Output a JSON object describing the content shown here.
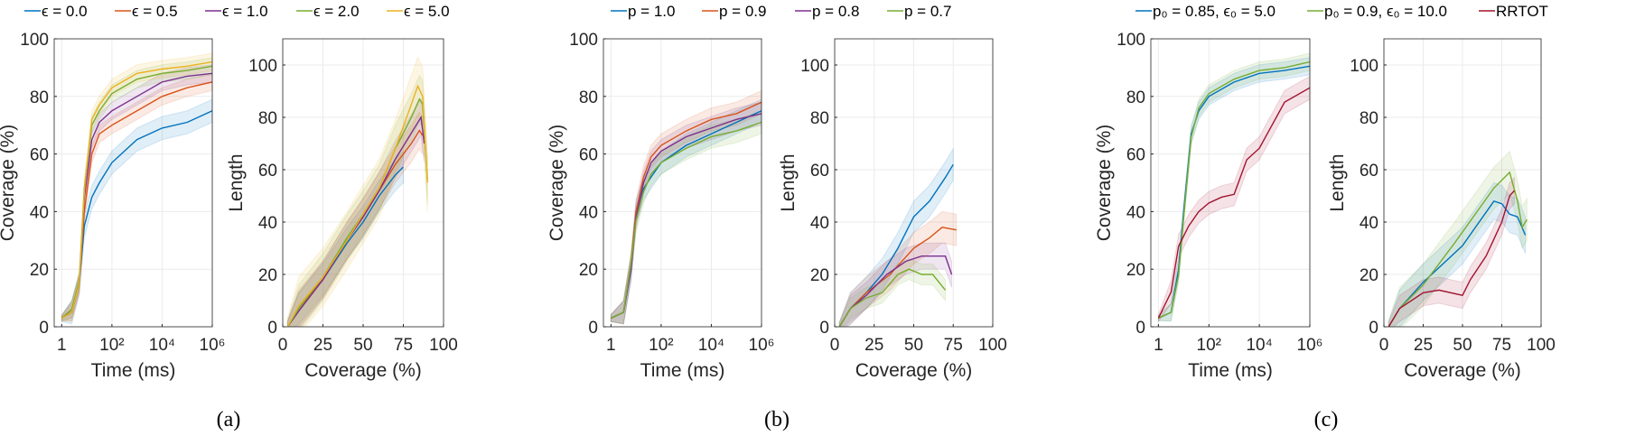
{
  "colors": {
    "blue": "#0072BD",
    "orange": "#D95319",
    "purple": "#7E2F8E",
    "green": "#77AC30",
    "yellow": "#EDB120",
    "red": "#A2142F"
  },
  "legends": [
    {
      "panel": "a",
      "items": [
        {
          "label": "ϵ = 0.0",
          "color": "#0072BD"
        },
        {
          "label": "ϵ = 0.5",
          "color": "#D95319"
        },
        {
          "label": "ϵ = 1.0",
          "color": "#7E2F8E"
        },
        {
          "label": "ϵ = 2.0",
          "color": "#77AC30"
        },
        {
          "label": "ϵ = 5.0",
          "color": "#EDB120"
        }
      ]
    },
    {
      "panel": "b",
      "items": [
        {
          "label": "p = 1.0",
          "color": "#0072BD"
        },
        {
          "label": "p = 0.9",
          "color": "#D95319"
        },
        {
          "label": "p = 0.8",
          "color": "#7E2F8E"
        },
        {
          "label": "p = 0.7",
          "color": "#77AC30"
        }
      ]
    },
    {
      "panel": "c",
      "items": [
        {
          "label": "p₀ = 0.85, ϵ₀ = 5.0",
          "color": "#0072BD"
        },
        {
          "label": "p₀ = 0.9, ϵ₀ = 10.0",
          "color": "#77AC30"
        },
        {
          "label": "RRTOT",
          "color": "#A2142F"
        }
      ]
    }
  ],
  "captions": [
    "(a)",
    "(b)",
    "(c)"
  ],
  "chart_data": [
    {
      "type": "line",
      "panel": "a",
      "xscale": "log",
      "xlabel": "Time (ms)",
      "ylabel": "Coverage (%)",
      "xlim_log10": [
        -0.3,
        6
      ],
      "ylim": [
        0,
        100
      ],
      "xticks_log10": [
        0,
        2,
        4,
        6
      ],
      "xtick_labels": [
        "1",
        "10²",
        "10⁴",
        "10⁶"
      ],
      "yticks": [
        0,
        20,
        40,
        60,
        80,
        100
      ],
      "ytick_labels": [
        "0",
        "20",
        "40",
        "60",
        "80",
        "100"
      ],
      "grid": true,
      "series": [
        {
          "name": "ϵ = 0.0",
          "color": "#0072BD",
          "spread": 4,
          "x_log10": [
            0,
            0.4,
            0.7,
            0.9,
            1.2,
            1.5,
            2,
            2.5,
            3,
            4,
            5,
            6
          ],
          "y": [
            3,
            5,
            15,
            35,
            45,
            50,
            57,
            61,
            65,
            69,
            71,
            75
          ]
        },
        {
          "name": "ϵ = 0.5",
          "color": "#D95319",
          "spread": 3,
          "x_log10": [
            0,
            0.4,
            0.7,
            0.9,
            1.2,
            1.5,
            2,
            3,
            4,
            5,
            6
          ],
          "y": [
            3,
            5,
            15,
            40,
            60,
            67,
            70,
            75,
            80,
            83,
            85
          ]
        },
        {
          "name": "ϵ = 1.0",
          "color": "#7E2F8E",
          "spread": 3,
          "x_log10": [
            0,
            0.4,
            0.7,
            0.9,
            1.2,
            1.5,
            2,
            3,
            4,
            5,
            6
          ],
          "y": [
            3,
            6,
            15,
            45,
            65,
            71,
            75,
            80,
            85,
            87,
            88
          ]
        },
        {
          "name": "ϵ = 2.0",
          "color": "#77AC30",
          "spread": 3,
          "x_log10": [
            0,
            0.4,
            0.7,
            0.9,
            1.2,
            1.5,
            2,
            3,
            4,
            5,
            6
          ],
          "y": [
            3,
            6,
            16,
            48,
            70,
            75,
            81,
            86,
            88,
            89,
            90.5
          ]
        },
        {
          "name": "ϵ = 5.0",
          "color": "#EDB120",
          "spread": 3,
          "x_log10": [
            0,
            0.4,
            0.7,
            0.9,
            1.2,
            1.5,
            2,
            3,
            4,
            5,
            6
          ],
          "y": [
            3,
            5,
            15,
            47,
            72,
            77,
            83,
            88,
            89.5,
            90.5,
            92
          ]
        }
      ]
    },
    {
      "type": "line",
      "panel": "a",
      "xscale": "linear",
      "xlabel": "Coverage (%)",
      "ylabel": "Length",
      "xlim": [
        0,
        100
      ],
      "ylim": [
        0,
        110
      ],
      "xticks": [
        0,
        25,
        50,
        75,
        100
      ],
      "xtick_labels": [
        "0",
        "25",
        "50",
        "75",
        "100"
      ],
      "yticks": [
        0,
        20,
        40,
        60,
        80,
        100
      ],
      "ytick_labels": [
        "0",
        "20",
        "40",
        "60",
        "80",
        "100"
      ],
      "grid": true,
      "series": [
        {
          "name": "ϵ = 0.0",
          "color": "#0072BD",
          "spread": 6,
          "x": [
            3,
            10,
            25,
            40,
            50,
            60,
            70,
            75
          ],
          "y": [
            0,
            7,
            18,
            32,
            40,
            50,
            58,
            61
          ]
        },
        {
          "name": "ϵ = 0.5",
          "color": "#D95319",
          "spread": 7,
          "x": [
            3,
            10,
            25,
            40,
            50,
            60,
            70,
            80,
            85,
            87
          ],
          "y": [
            0,
            7,
            18,
            33,
            42,
            52,
            62,
            70,
            75,
            73
          ]
        },
        {
          "name": "ϵ = 1.0",
          "color": "#7E2F8E",
          "spread": 7,
          "x": [
            3,
            10,
            25,
            40,
            50,
            60,
            70,
            80,
            86,
            88
          ],
          "y": [
            0,
            6,
            18,
            33,
            42,
            52,
            64,
            74,
            80,
            70
          ]
        },
        {
          "name": "ϵ = 2.0",
          "color": "#77AC30",
          "spread": 9,
          "x": [
            3,
            10,
            25,
            40,
            50,
            60,
            70,
            80,
            85,
            87,
            90
          ],
          "y": [
            0,
            7,
            19,
            34,
            43,
            53,
            68,
            80,
            87,
            85,
            56
          ]
        },
        {
          "name": "ϵ = 5.0",
          "color": "#EDB120",
          "spread": 11,
          "x": [
            3,
            10,
            25,
            40,
            50,
            60,
            70,
            80,
            84,
            87,
            90
          ],
          "y": [
            0,
            8,
            19,
            33,
            43,
            53,
            68,
            85,
            92,
            88,
            55
          ]
        }
      ]
    },
    {
      "type": "line",
      "panel": "b",
      "xscale": "log",
      "xlabel": "Time (ms)",
      "ylabel": "Coverage (%)",
      "xlim_log10": [
        -0.3,
        6
      ],
      "ylim": [
        0,
        100
      ],
      "xticks_log10": [
        0,
        2,
        4,
        6
      ],
      "xtick_labels": [
        "1",
        "10²",
        "10⁴",
        "10⁶"
      ],
      "yticks": [
        0,
        20,
        40,
        60,
        80,
        100
      ],
      "ytick_labels": [
        "0",
        "20",
        "40",
        "60",
        "80",
        "100"
      ],
      "grid": true,
      "series": [
        {
          "name": "p = 1.0",
          "color": "#0072BD",
          "spread": 4,
          "x_log10": [
            0,
            0.5,
            0.8,
            1,
            1.3,
            1.6,
            2,
            3,
            4,
            5,
            6
          ],
          "y": [
            3,
            5,
            20,
            40,
            48,
            52,
            57,
            63,
            67,
            71,
            75
          ]
        },
        {
          "name": "p = 0.9",
          "color": "#D95319",
          "spread": 4,
          "x_log10": [
            0,
            0.5,
            0.8,
            1,
            1.3,
            1.6,
            2,
            3,
            4,
            5,
            6
          ],
          "y": [
            3,
            5,
            22,
            40,
            52,
            59,
            63,
            68,
            72,
            74,
            78
          ]
        },
        {
          "name": "p = 0.8",
          "color": "#7E2F8E",
          "spread": 4,
          "x_log10": [
            0,
            0.5,
            0.8,
            1,
            1.3,
            1.6,
            2,
            3,
            4,
            5,
            6
          ],
          "y": [
            3,
            5,
            20,
            38,
            50,
            57,
            61,
            66,
            69,
            72,
            74
          ]
        },
        {
          "name": "p = 0.7",
          "color": "#77AC30",
          "spread": 4,
          "x_log10": [
            0,
            0.5,
            0.8,
            1,
            1.3,
            1.6,
            2,
            3,
            4,
            5,
            6
          ],
          "y": [
            3,
            5,
            22,
            37,
            47,
            53,
            57,
            62,
            66,
            68,
            71
          ]
        }
      ]
    },
    {
      "type": "line",
      "panel": "b",
      "xscale": "linear",
      "xlabel": "Coverage (%)",
      "ylabel": "Length",
      "xlim": [
        0,
        100
      ],
      "ylim": [
        0,
        110
      ],
      "xticks": [
        0,
        25,
        50,
        75,
        100
      ],
      "xtick_labels": [
        "0",
        "25",
        "50",
        "75",
        "100"
      ],
      "yticks": [
        0,
        20,
        40,
        60,
        80,
        100
      ],
      "ytick_labels": [
        "0",
        "20",
        "40",
        "60",
        "80",
        "100"
      ],
      "grid": true,
      "series": [
        {
          "name": "p = 1.0",
          "color": "#0072BD",
          "spread": 6,
          "x": [
            3,
            10,
            20,
            30,
            40,
            50,
            60,
            70,
            75
          ],
          "y": [
            0,
            7,
            13,
            20,
            30,
            42,
            48,
            57,
            62
          ]
        },
        {
          "name": "p = 0.9",
          "color": "#D95319",
          "spread": 6,
          "x": [
            3,
            10,
            20,
            35,
            50,
            60,
            68,
            77
          ],
          "y": [
            0,
            7,
            13,
            20,
            30,
            34,
            38,
            37
          ]
        },
        {
          "name": "p = 0.8",
          "color": "#7E2F8E",
          "spread": 5,
          "x": [
            3,
            10,
            20,
            33,
            45,
            55,
            70,
            74
          ],
          "y": [
            0,
            7,
            12,
            20,
            25,
            27,
            27,
            20
          ]
        },
        {
          "name": "p = 0.7",
          "color": "#77AC30",
          "spread": 4,
          "x": [
            3,
            10,
            20,
            30,
            40,
            47,
            55,
            62,
            70
          ],
          "y": [
            0,
            7,
            11,
            13,
            20,
            22,
            20,
            20,
            14
          ]
        }
      ]
    },
    {
      "type": "line",
      "panel": "c",
      "xscale": "log",
      "xlabel": "Time (ms)",
      "ylabel": "Coverage (%)",
      "xlim_log10": [
        -0.3,
        6
      ],
      "ylim": [
        0,
        100
      ],
      "xticks_log10": [
        0,
        2,
        4,
        6
      ],
      "xtick_labels": [
        "1",
        "10²",
        "10⁴",
        "10⁶"
      ],
      "yticks": [
        0,
        20,
        40,
        60,
        80,
        100
      ],
      "ytick_labels": [
        "0",
        "20",
        "40",
        "60",
        "80",
        "100"
      ],
      "grid": true,
      "series": [
        {
          "name": "p₀ = 0.85, ϵ₀ = 5.0",
          "color": "#0072BD",
          "spread": 3,
          "x_log10": [
            0,
            0.5,
            0.8,
            1,
            1.3,
            1.6,
            2,
            3,
            4,
            5,
            6
          ],
          "y": [
            3,
            5,
            20,
            40,
            67,
            75,
            80,
            85,
            88,
            89,
            90.5
          ]
        },
        {
          "name": "p₀ = 0.9, ϵ₀ = 10.0",
          "color": "#77AC30",
          "spread": 3,
          "x_log10": [
            0,
            0.5,
            0.8,
            1,
            1.3,
            1.6,
            2,
            3,
            4,
            5,
            6
          ],
          "y": [
            3,
            5,
            18,
            38,
            66,
            76,
            81,
            86,
            89,
            90,
            92
          ]
        },
        {
          "name": "RRTOT",
          "color": "#A2142F",
          "spread": 4,
          "x_log10": [
            0,
            0.5,
            0.8,
            1.2,
            1.6,
            2,
            2.5,
            3,
            3.5,
            4,
            4.5,
            5,
            6
          ],
          "y": [
            3,
            12,
            28,
            35,
            40,
            43,
            45,
            46,
            58,
            62,
            70,
            78,
            83
          ]
        }
      ]
    },
    {
      "type": "line",
      "panel": "c",
      "xscale": "linear",
      "xlabel": "Coverage (%)",
      "ylabel": "Length",
      "xlim": [
        0,
        100
      ],
      "ylim": [
        0,
        110
      ],
      "xticks": [
        0,
        25,
        50,
        75,
        100
      ],
      "xtick_labels": [
        "0",
        "25",
        "50",
        "75",
        "100"
      ],
      "yticks": [
        0,
        20,
        40,
        60,
        80,
        100
      ],
      "ytick_labels": [
        "0",
        "20",
        "40",
        "60",
        "80",
        "100"
      ],
      "grid": true,
      "series": [
        {
          "name": "p₀ = 0.85, ϵ₀ = 5.0",
          "color": "#0072BD",
          "spread": 7,
          "x": [
            3,
            10,
            25,
            50,
            70,
            75,
            80,
            85,
            90
          ],
          "y": [
            0,
            7,
            17,
            31,
            48,
            47,
            43,
            42,
            35
          ]
        },
        {
          "name": "p₀ = 0.9, ϵ₀ = 10.0",
          "color": "#77AC30",
          "spread": 8,
          "x": [
            3,
            10,
            25,
            45,
            70,
            80,
            85,
            88,
            91
          ],
          "y": [
            0,
            7,
            16,
            32,
            53,
            59,
            48,
            38,
            41
          ]
        },
        {
          "name": "RRTOT",
          "color": "#A2142F",
          "spread": 5,
          "x": [
            3,
            10,
            25,
            35,
            50,
            55,
            65,
            75,
            80,
            83
          ],
          "y": [
            0,
            7,
            13,
            14,
            12,
            18,
            27,
            40,
            50,
            52
          ]
        }
      ]
    }
  ]
}
